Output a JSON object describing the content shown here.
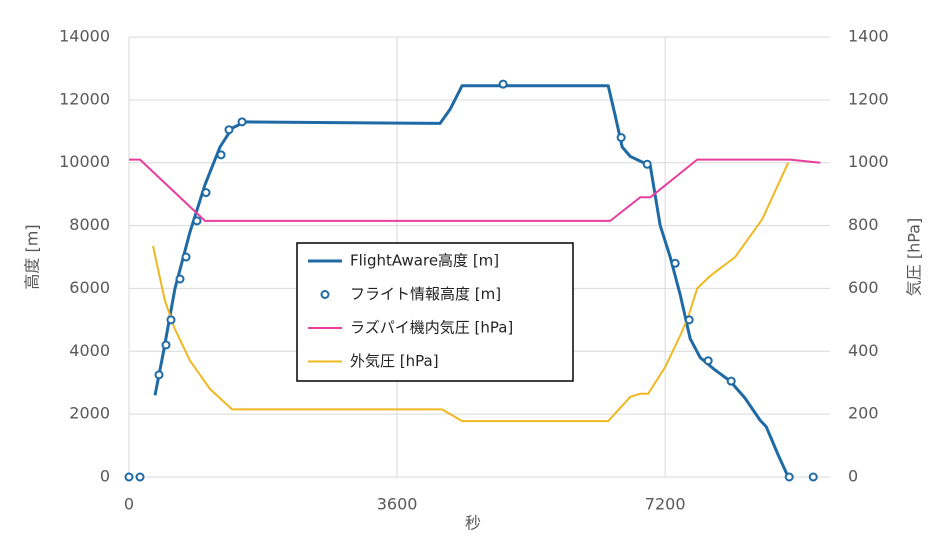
{
  "chart_data": {
    "type": "line",
    "xlabel": "秒",
    "ylabel": "高度 [m]",
    "y2label": "気圧 [hPa]",
    "xlim": [
      0,
      9360
    ],
    "xticks": [
      0,
      3600,
      7200
    ],
    "ylim": [
      0,
      14000
    ],
    "yticks": [
      0,
      2000,
      4000,
      6000,
      8000,
      10000,
      12000,
      14000
    ],
    "y2lim": [
      0,
      1400
    ],
    "y2ticks": [
      0,
      200,
      400,
      600,
      800,
      1000,
      1200,
      1400
    ],
    "grid": true,
    "legend": "center",
    "series": [
      {
        "name": "FlightAware高度 [m]",
        "color": "#1f6aa5",
        "style": "line",
        "x": [
          349,
          457,
          618,
          819,
          1021,
          1222,
          1384,
          1558,
          4178,
          4312,
          4473,
          6435,
          6529,
          6623,
          6730,
          6865,
          7000,
          7134,
          7268,
          7402,
          7536,
          7671,
          7872,
          8074,
          8275,
          8477,
          8557,
          8718,
          8852
        ],
        "values": [
          2600,
          3900,
          6000,
          7800,
          9300,
          10500,
          11100,
          11300,
          11250,
          11700,
          12450,
          12450,
          11500,
          10500,
          10200,
          10050,
          9900,
          8000,
          7000,
          5800,
          4400,
          3800,
          3400,
          3050,
          2500,
          1800,
          1600,
          700,
          0
        ]
      },
      {
        "name": "フライト情報高度 [m]",
        "color": "#1f6aa5",
        "style": "markers",
        "x": [
          0,
          148,
          403,
          497,
          564,
          685,
          766,
          913,
          1034,
          1236,
          1343,
          1518,
          5024,
          6609,
          6959,
          7335,
          7523,
          7778,
          8087,
          8866,
          9189
        ],
        "values": [
          0,
          0,
          3250,
          4200,
          5000,
          6300,
          7000,
          8150,
          9050,
          10250,
          11050,
          11300,
          12500,
          10800,
          9950,
          6800,
          5000,
          3700,
          3050,
          0,
          0
        ]
      },
      {
        "name": "ラズパイ機内気圧 [hPa]",
        "color": "#e83e9e",
        "style": "line",
        "axis": "y2",
        "x": [
          0,
          148,
          1021,
          6462,
          6865,
          7000,
          7630,
          8879,
          9283
        ],
        "values": [
          1010,
          1010,
          815,
          815,
          890,
          890,
          1010,
          1010,
          1000
        ]
      },
      {
        "name": "外気圧 [hPa]",
        "color": "#f0b820",
        "style": "line",
        "axis": "y2",
        "x": [
          322,
          484,
          618,
          819,
          1088,
          1384,
          4205,
          4473,
          6435,
          6596,
          6730,
          6865,
          6972,
          7200,
          7402,
          7509,
          7630,
          7805,
          8141,
          8503,
          8852
        ],
        "values": [
          735,
          560,
          470,
          370,
          280,
          215,
          215,
          178,
          178,
          220,
          255,
          265,
          265,
          350,
          450,
          510,
          600,
          640,
          700,
          820,
          1000
        ]
      }
    ]
  }
}
